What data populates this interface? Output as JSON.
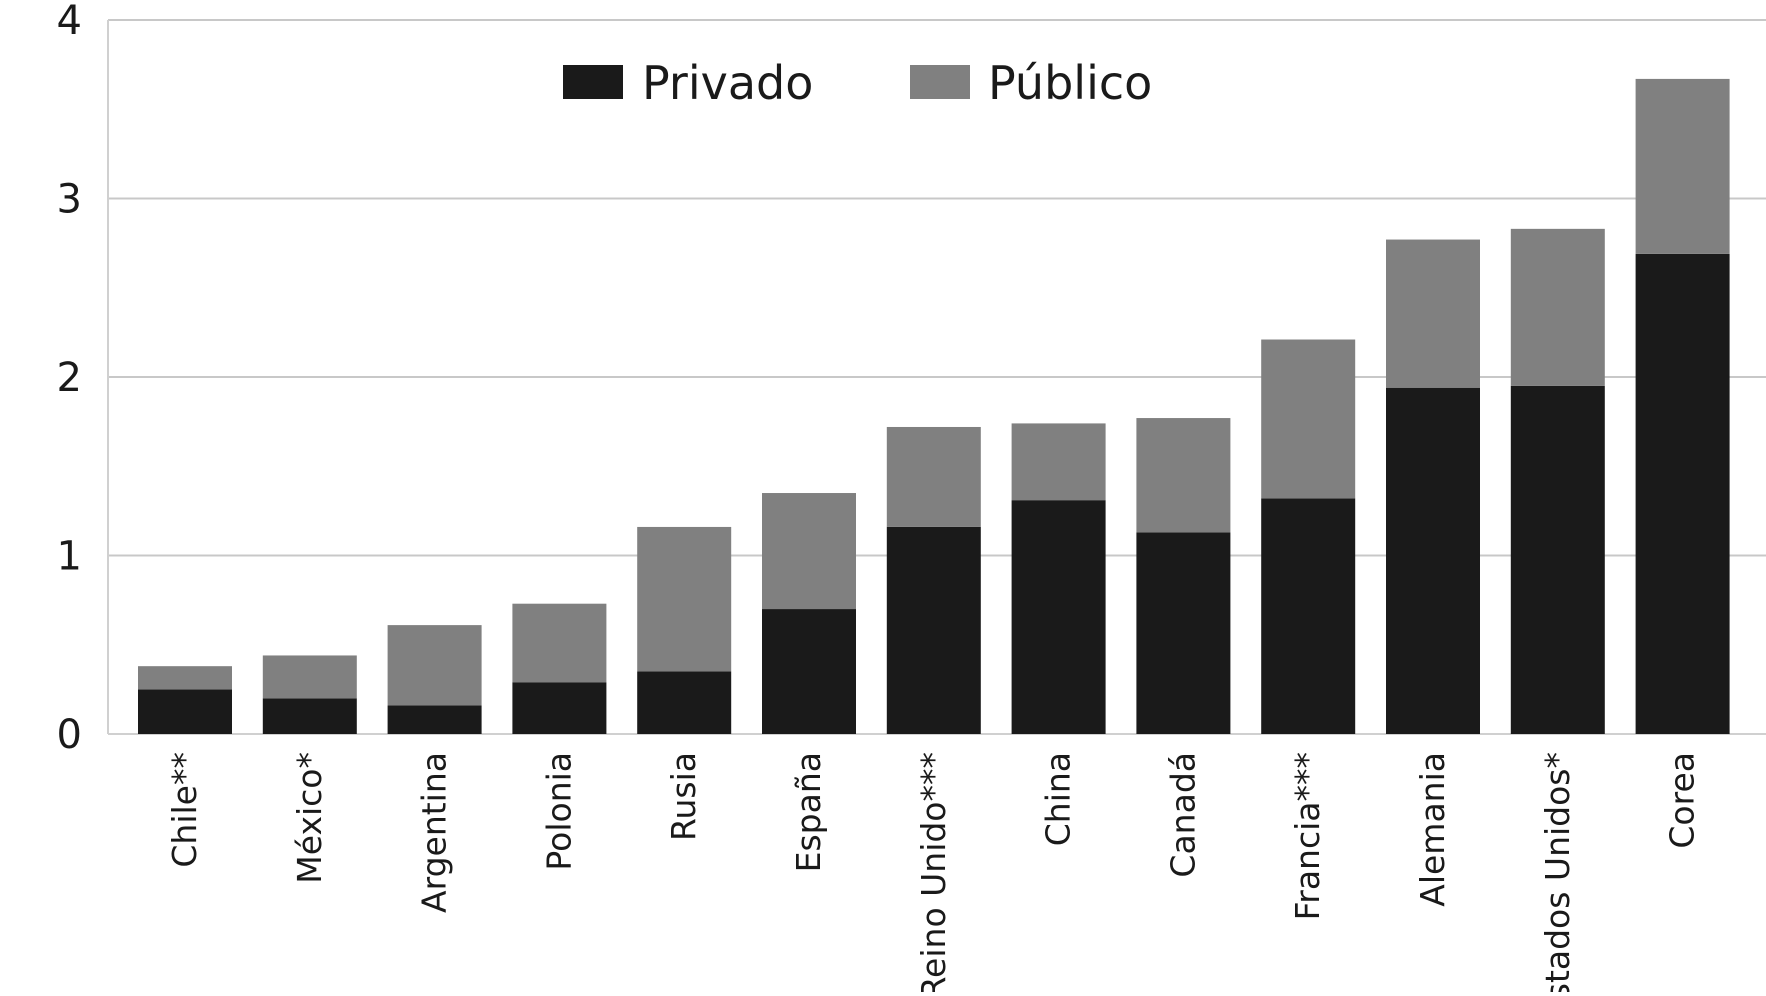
{
  "chart_data": {
    "type": "bar",
    "stacked": true,
    "categories": [
      "Chile**",
      "México*",
      "Argentina",
      "Polonia",
      "Rusia",
      "España",
      "Reino Unido***",
      "China",
      "Canadá",
      "Francia***",
      "Alemania",
      "Estados Unidos*",
      "Corea"
    ],
    "series": [
      {
        "name": "Privado",
        "color": "#1a1a1a",
        "values": [
          0.25,
          0.2,
          0.16,
          0.29,
          0.35,
          0.7,
          1.16,
          1.31,
          1.13,
          1.32,
          1.94,
          1.95,
          2.69
        ]
      },
      {
        "name": "Público",
        "color": "#808080",
        "values": [
          0.13,
          0.24,
          0.45,
          0.44,
          0.81,
          0.65,
          0.56,
          0.43,
          0.64,
          0.89,
          0.83,
          0.88,
          0.98
        ]
      }
    ],
    "ylim": [
      0,
      4
    ],
    "yticks": [
      "0",
      "1",
      "2",
      "3",
      "4"
    ],
    "grid": true,
    "legend_position": "top-center",
    "title": "",
    "xlabel": "",
    "ylabel": ""
  }
}
